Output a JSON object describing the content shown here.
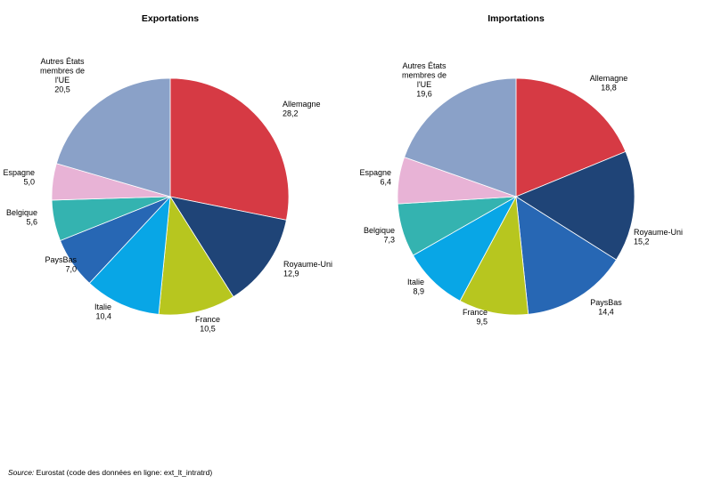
{
  "chart_data": [
    {
      "type": "pie",
      "title": "Exportations",
      "slices": [
        {
          "label": [
            "Allemagne"
          ],
          "value": 28.2,
          "value_text": "28,2",
          "color": "#d63a44"
        },
        {
          "label": [
            "Royaume-Uni"
          ],
          "value": 12.9,
          "value_text": "12,9",
          "color": "#1f4477"
        },
        {
          "label": [
            "France"
          ],
          "value": 10.5,
          "value_text": "10,5",
          "color": "#b7c61f"
        },
        {
          "label": [
            "Italie"
          ],
          "value": 10.4,
          "value_text": "10,4",
          "color": "#08a6e6"
        },
        {
          "label": [
            "PaysBas"
          ],
          "value": 7.0,
          "value_text": "7,0",
          "color": "#2767b4"
        },
        {
          "label": [
            "Belgique"
          ],
          "value": 5.6,
          "value_text": "5,6",
          "color": "#34b3b0"
        },
        {
          "label": [
            "Espagne"
          ],
          "value": 5.0,
          "value_text": "5,0",
          "color": "#e8b3d6"
        },
        {
          "label": [
            "Autres États",
            "membres de",
            "l'UE"
          ],
          "value": 20.5,
          "value_text": "20,5",
          "color": "#8aa1c8"
        }
      ]
    },
    {
      "type": "pie",
      "title": "Importations",
      "slices": [
        {
          "label": [
            "Allemagne"
          ],
          "value": 18.8,
          "value_text": "18,8",
          "color": "#d63a44"
        },
        {
          "label": [
            "Royaume-Uni"
          ],
          "value": 15.2,
          "value_text": "15,2",
          "color": "#1f4477"
        },
        {
          "label": [
            "PaysBas"
          ],
          "value": 14.4,
          "value_text": "14,4",
          "color": "#2767b4"
        },
        {
          "label": [
            "France"
          ],
          "value": 9.5,
          "value_text": "9,5",
          "color": "#b7c61f"
        },
        {
          "label": [
            "Italie"
          ],
          "value": 8.9,
          "value_text": "8,9",
          "color": "#08a6e6"
        },
        {
          "label": [
            "Belgique"
          ],
          "value": 7.3,
          "value_text": "7,3",
          "color": "#34b3b0"
        },
        {
          "label": [
            "Espagne"
          ],
          "value": 6.4,
          "value_text": "6,4",
          "color": "#e8b3d6"
        },
        {
          "label": [
            "Autres États",
            "membres de",
            "l'UE"
          ],
          "value": 19.6,
          "value_text": "19,6",
          "color": "#8aa1c8"
        }
      ]
    }
  ],
  "source": {
    "label": "Source:",
    "text": " Eurostat (code des données en ligne: ext_lt_intratrd)"
  }
}
